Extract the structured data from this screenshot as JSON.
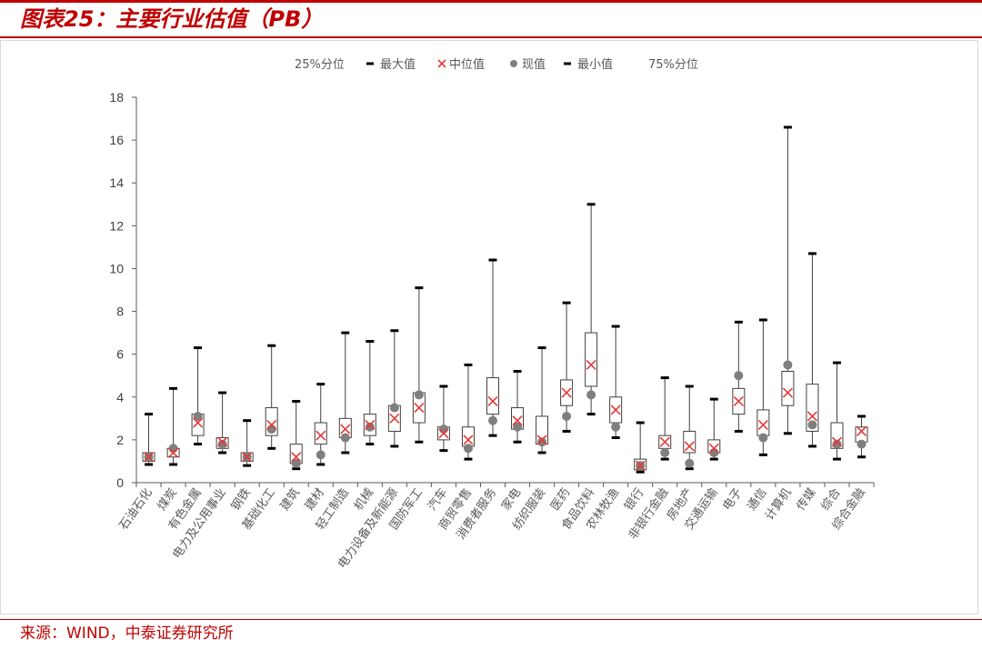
{
  "title": "图表25：主要行业估值（PB）",
  "source": "来源：WIND，中泰证券研究所",
  "chart_data": {
    "type": "box",
    "title": "",
    "xlabel": "",
    "ylabel": "",
    "ylim": [
      0,
      18
    ],
    "yticks": [
      0,
      2,
      4,
      6,
      8,
      10,
      12,
      14,
      16,
      18
    ],
    "grid": false,
    "legend_position": "top",
    "legend": [
      "25%分位",
      "最大值",
      "中位值",
      "现值",
      "最小值",
      "75%分位"
    ],
    "colors": {
      "title": "#c00000",
      "box_edge": "#404040",
      "whisker": "#404040",
      "median_marker": "#e53935",
      "current_marker": "#7f7f7f",
      "axis": "#595959"
    },
    "categories": [
      "石油石化",
      "煤炭",
      "有色金属",
      "电力及公用事业",
      "钢铁",
      "基础化工",
      "建筑",
      "建材",
      "轻工制造",
      "机械",
      "电力设备及新能源",
      "国防军工",
      "汽车",
      "商贸零售",
      "消费者服务",
      "家电",
      "纺织服装",
      "医药",
      "食品饮料",
      "农林牧渔",
      "银行",
      "非银行金融",
      "房地产",
      "交通运输",
      "电子",
      "通信",
      "计算机",
      "传媒",
      "综合",
      "综合金融"
    ],
    "series": [
      {
        "name": "最大值",
        "values": [
          3.2,
          4.4,
          6.3,
          4.2,
          2.9,
          6.4,
          3.8,
          4.6,
          7.0,
          6.6,
          7.1,
          9.1,
          4.5,
          5.5,
          10.4,
          5.2,
          6.3,
          8.4,
          13.0,
          7.3,
          2.8,
          4.9,
          4.5,
          3.9,
          7.5,
          7.6,
          16.6,
          10.7,
          5.6,
          3.1
        ]
      },
      {
        "name": "75%分位",
        "values": [
          1.4,
          1.6,
          3.2,
          2.1,
          1.4,
          3.5,
          1.8,
          2.8,
          3.0,
          3.2,
          3.6,
          4.2,
          2.6,
          2.6,
          4.9,
          3.5,
          3.1,
          4.8,
          7.0,
          4.0,
          1.1,
          2.2,
          2.4,
          2.0,
          4.4,
          3.4,
          5.2,
          4.6,
          2.8,
          2.6
        ]
      },
      {
        "name": "中位值",
        "values": [
          1.2,
          1.4,
          2.8,
          1.9,
          1.2,
          2.7,
          1.2,
          2.2,
          2.5,
          2.7,
          3.0,
          3.5,
          2.3,
          2.0,
          3.8,
          2.9,
          2.0,
          4.2,
          5.5,
          3.4,
          0.8,
          1.9,
          1.7,
          1.6,
          3.8,
          2.7,
          4.2,
          3.1,
          1.9,
          2.4
        ]
      },
      {
        "name": "25%分位",
        "values": [
          1.0,
          1.2,
          2.2,
          1.6,
          1.0,
          2.2,
          0.9,
          1.8,
          2.1,
          2.2,
          2.4,
          2.8,
          2.0,
          1.7,
          3.2,
          2.5,
          1.8,
          3.6,
          4.5,
          2.8,
          0.6,
          1.6,
          1.4,
          1.4,
          3.2,
          2.2,
          3.6,
          2.4,
          1.6,
          1.9
        ]
      },
      {
        "name": "最小值",
        "values": [
          0.85,
          0.85,
          1.8,
          1.4,
          0.8,
          1.6,
          0.65,
          0.85,
          1.4,
          1.8,
          1.7,
          1.9,
          1.5,
          1.1,
          2.2,
          1.9,
          1.4,
          2.4,
          3.2,
          2.1,
          0.5,
          1.1,
          0.65,
          1.1,
          2.4,
          1.3,
          2.3,
          1.7,
          1.1,
          1.2
        ]
      },
      {
        "name": "现值",
        "values": [
          1.2,
          1.6,
          3.1,
          1.8,
          1.2,
          2.5,
          0.9,
          1.3,
          2.1,
          2.6,
          3.5,
          4.1,
          2.5,
          1.6,
          2.9,
          2.6,
          1.9,
          3.1,
          4.1,
          2.6,
          0.8,
          1.4,
          0.9,
          1.4,
          5.0,
          2.1,
          5.5,
          2.7,
          1.8,
          1.8
        ]
      }
    ]
  }
}
